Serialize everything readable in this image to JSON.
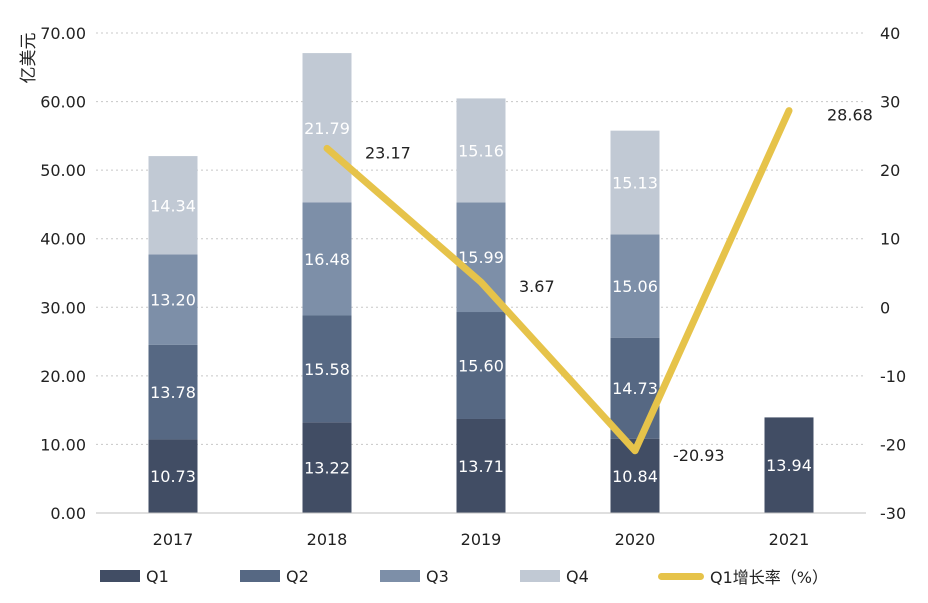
{
  "chart_data": {
    "type": "bar",
    "stacked": true,
    "categories": [
      "2017",
      "2018",
      "2019",
      "2020",
      "2021"
    ],
    "ylabel": "亿美元",
    "ylim": [
      0,
      70
    ],
    "y_ticks": [
      "0.00",
      "10.00",
      "20.00",
      "30.00",
      "40.00",
      "50.00",
      "60.00",
      "70.00"
    ],
    "y2lim": [
      -30,
      40
    ],
    "y2_ticks": [
      "-30",
      "-20",
      "-10",
      "0",
      "10",
      "20",
      "30",
      "40"
    ],
    "grid": "horizontal dotted",
    "legend_position": "bottom",
    "series": [
      {
        "name": "Q1",
        "color": "#414d64",
        "values": [
          10.73,
          13.22,
          13.71,
          10.84,
          13.94
        ],
        "labels": [
          "10.73",
          "13.22",
          "13.71",
          "10.84",
          "13.94"
        ]
      },
      {
        "name": "Q2",
        "color": "#566883",
        "values": [
          13.78,
          15.58,
          15.6,
          14.73,
          null
        ],
        "labels": [
          "13.78",
          "15.58",
          "15.60",
          "14.73",
          ""
        ]
      },
      {
        "name": "Q3",
        "color": "#7d8fa8",
        "values": [
          13.2,
          16.48,
          15.99,
          15.06,
          null
        ],
        "labels": [
          "13.20",
          "16.48",
          "15.99",
          "15.06",
          ""
        ]
      },
      {
        "name": "Q4",
        "color": "#c1c9d4",
        "values": [
          14.34,
          21.79,
          15.16,
          15.13,
          null
        ],
        "labels": [
          "14.34",
          "21.79",
          "15.16",
          "15.13",
          ""
        ]
      }
    ],
    "line_series": {
      "name": "Q1增长率（%）",
      "axis": "right",
      "color": "#e6c34a",
      "points": [
        {
          "x": "2018",
          "y": 23.17,
          "label": "23.17"
        },
        {
          "x": "2019",
          "y": 3.67,
          "label": "3.67"
        },
        {
          "x": "2020",
          "y": -20.93,
          "label": "-20.93"
        },
        {
          "x": "2021",
          "y": 28.68,
          "label": "28.68"
        }
      ]
    }
  }
}
